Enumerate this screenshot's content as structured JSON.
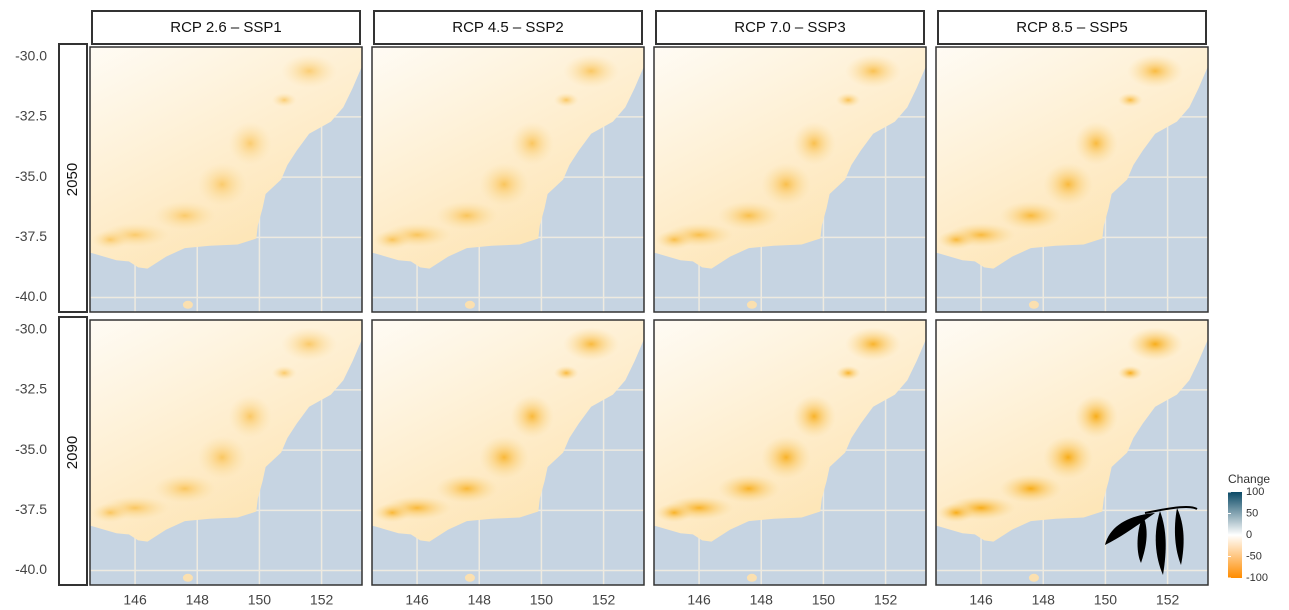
{
  "chart_data": {
    "type": "map",
    "columns": [
      "RCP 2.6 – SSP1",
      "RCP 4.5 – SSP2",
      "RCP 7.0 – SSP3",
      "RCP 8.5 – SSP5"
    ],
    "rows": [
      "2050",
      "2090"
    ],
    "xlim": [
      144.55,
      153.3
    ],
    "xticks": [
      146,
      148,
      150,
      152
    ],
    "ylim": [
      -40.6,
      -29.6
    ],
    "yticks": [
      {
        "value": -30,
        "label": "-30.0"
      },
      -32.5,
      {
        "value": -35,
        "label": "-35.0"
      },
      -37.5,
      {
        "value": -40,
        "label": "-40.0"
      }
    ],
    "grid": true,
    "legend": {
      "title": "Change",
      "lim": [
        -100,
        100
      ],
      "ticks": [
        100,
        50,
        0,
        -50,
        -100
      ],
      "colors": [
        "#0b4a66",
        "#ffffff",
        "#ff8c00"
      ]
    }
  }
}
